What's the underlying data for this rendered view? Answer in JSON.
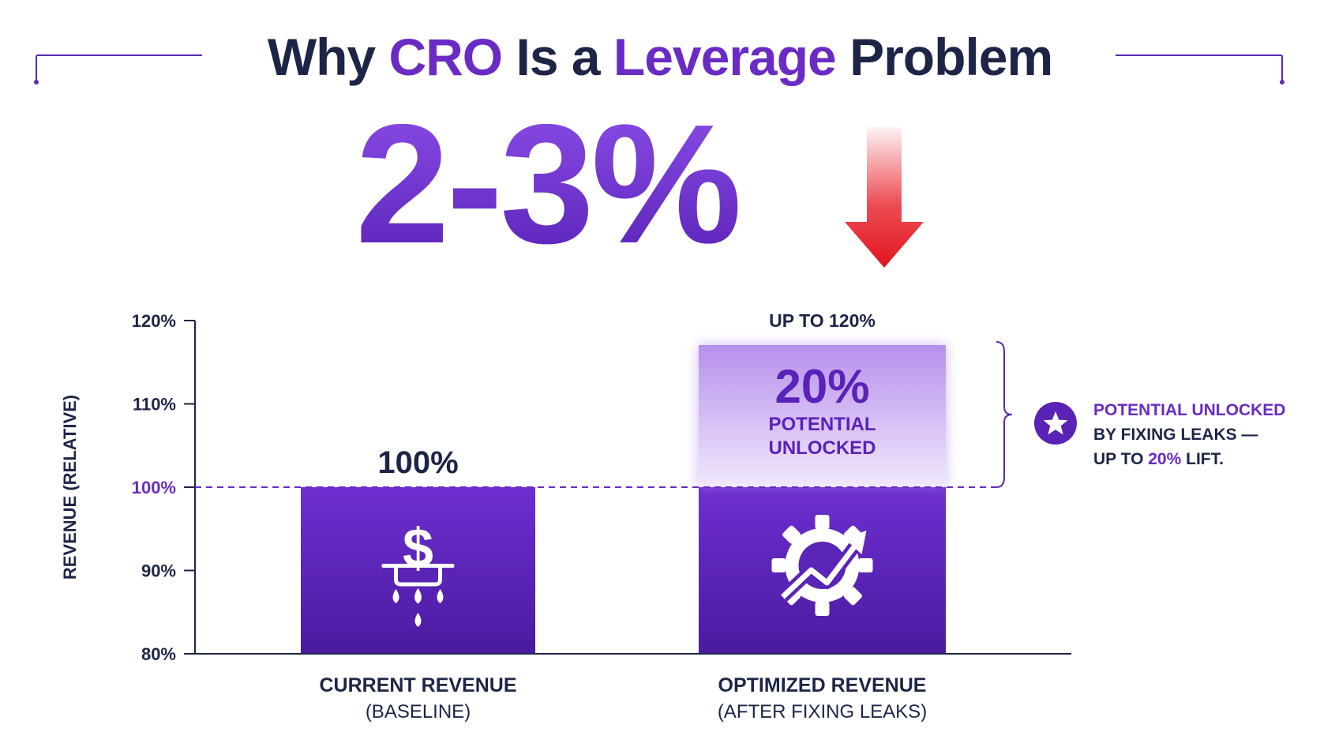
{
  "title": {
    "part1": "Why ",
    "part2": "CRO",
    "part3": " Is a ",
    "part4": "Leverage",
    "part5": " Problem"
  },
  "hero": {
    "value": "2-3%",
    "arrow_icon": "down-arrow-icon"
  },
  "colors": {
    "navy": "#1d2547",
    "purple": "#6a2bc4",
    "bar_top": "#6d2fd0",
    "bar_bottom": "#4a1aa0",
    "arrow_red": "#e8202a"
  },
  "chart_data": {
    "type": "bar",
    "ylabel": "REVENUE (RELATIVE)",
    "ylim": [
      80,
      120
    ],
    "yticks": [
      "80%",
      "90%",
      "100%",
      "110%",
      "120%"
    ],
    "ytick_values": [
      80,
      90,
      100,
      110,
      120
    ],
    "reference_line": 100,
    "categories": [
      {
        "label": "CURRENT REVENUE",
        "sublabel": "(BASELINE)",
        "icon": "leaking-dollar-icon"
      },
      {
        "label": "OPTIMIZED REVENUE",
        "sublabel": "(AFTER FIXING LEAKS)",
        "icon": "gear-growth-icon"
      }
    ],
    "values": [
      100,
      120
    ],
    "base_values": [
      100,
      100
    ],
    "uplift": {
      "value": 20,
      "from": 100,
      "to": 120
    },
    "data_labels": [
      "100%",
      "UP TO 120%"
    ],
    "uplift_label": {
      "value": "20%",
      "line1": "POTENTIAL",
      "line2": "UNLOCKED"
    }
  },
  "side_note": {
    "icon": "star-icon",
    "line1": "POTENTIAL UNLOCKED",
    "line2": "BY FIXING LEAKS —",
    "line3_prefix": "UP TO ",
    "line3_pct": "20%",
    "line3_suffix": " LIFT."
  }
}
